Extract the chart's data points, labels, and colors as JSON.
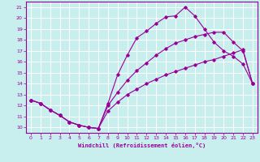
{
  "xlabel": "Windchill (Refroidissement éolien,°C)",
  "xlim": [
    -0.5,
    23.5
  ],
  "ylim": [
    9.5,
    21.5
  ],
  "xticks": [
    0,
    1,
    2,
    3,
    4,
    5,
    6,
    7,
    8,
    9,
    10,
    11,
    12,
    13,
    14,
    15,
    16,
    17,
    18,
    19,
    20,
    21,
    22,
    23
  ],
  "yticks": [
    10,
    11,
    12,
    13,
    14,
    15,
    16,
    17,
    18,
    19,
    20,
    21
  ],
  "background_color": "#c8eeee",
  "line_color": "#990099",
  "grid_color": "#ffffff",
  "line1_x": [
    0,
    1,
    2,
    3,
    4,
    5,
    6,
    7,
    8,
    9,
    10,
    11,
    12,
    13,
    14,
    15,
    16,
    17,
    18,
    19,
    20,
    21,
    22,
    23
  ],
  "line1_y": [
    12.5,
    12.2,
    11.6,
    11.1,
    10.5,
    10.2,
    10.0,
    9.9,
    12.2,
    14.8,
    16.6,
    18.2,
    18.8,
    19.5,
    20.1,
    20.2,
    21.0,
    20.2,
    19.0,
    17.8,
    17.0,
    16.5,
    15.8,
    14.0
  ],
  "line2_x": [
    0,
    1,
    2,
    3,
    4,
    5,
    6,
    7,
    8,
    9,
    10,
    11,
    12,
    13,
    14,
    15,
    16,
    17,
    18,
    19,
    20,
    21,
    22,
    23
  ],
  "line2_y": [
    12.5,
    12.2,
    11.6,
    11.1,
    10.5,
    10.2,
    10.0,
    9.9,
    12.0,
    13.2,
    14.3,
    15.2,
    15.9,
    16.6,
    17.2,
    17.7,
    18.0,
    18.3,
    18.5,
    18.7,
    18.7,
    17.8,
    17.0,
    14.0
  ],
  "line3_x": [
    0,
    1,
    2,
    3,
    4,
    5,
    6,
    7,
    8,
    9,
    10,
    11,
    12,
    13,
    14,
    15,
    16,
    17,
    18,
    19,
    20,
    21,
    22,
    23
  ],
  "line3_y": [
    12.5,
    12.2,
    11.6,
    11.1,
    10.5,
    10.2,
    10.0,
    9.9,
    11.5,
    12.3,
    13.0,
    13.5,
    14.0,
    14.4,
    14.8,
    15.1,
    15.4,
    15.7,
    16.0,
    16.2,
    16.5,
    16.8,
    17.1,
    14.0
  ]
}
